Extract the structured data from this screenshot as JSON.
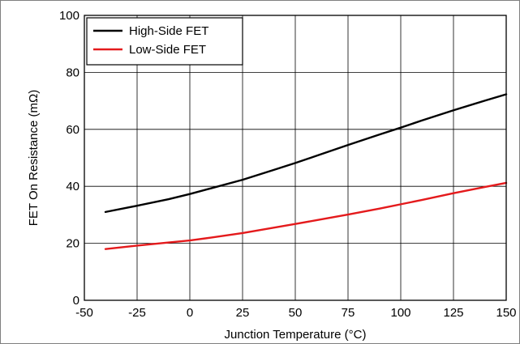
{
  "chart_data": {
    "type": "line",
    "title": "",
    "xlabel": "Junction Temperature (°C)",
    "ylabel": "FET On Resistance (mΩ)",
    "xlim": [
      -50,
      150
    ],
    "ylim": [
      0,
      100
    ],
    "x_ticks": [
      -50,
      -25,
      0,
      25,
      50,
      75,
      100,
      125,
      150
    ],
    "y_ticks": [
      0,
      20,
      40,
      60,
      80,
      100
    ],
    "grid": true,
    "legend_position": "top-left",
    "series": [
      {
        "name": "High-Side FET",
        "color": "#000000",
        "x": [
          -40,
          -25,
          -10,
          0,
          10,
          25,
          40,
          50,
          60,
          75,
          90,
          100,
          110,
          125,
          140,
          150
        ],
        "y": [
          31,
          33.2,
          35.5,
          37.3,
          39.3,
          42.3,
          45.8,
          48.2,
          50.7,
          54.5,
          58.2,
          60.6,
          63.1,
          66.7,
          70.1,
          72.3
        ]
      },
      {
        "name": "Low-Side FET",
        "color": "#e41a1c",
        "x": [
          -40,
          -25,
          -10,
          0,
          10,
          25,
          40,
          50,
          60,
          75,
          90,
          100,
          110,
          125,
          140,
          150
        ],
        "y": [
          18,
          19.2,
          20.3,
          21,
          22,
          23.6,
          25.5,
          26.8,
          28.1,
          30.1,
          32.2,
          33.7,
          35.2,
          37.6,
          39.8,
          41.2
        ]
      }
    ]
  }
}
